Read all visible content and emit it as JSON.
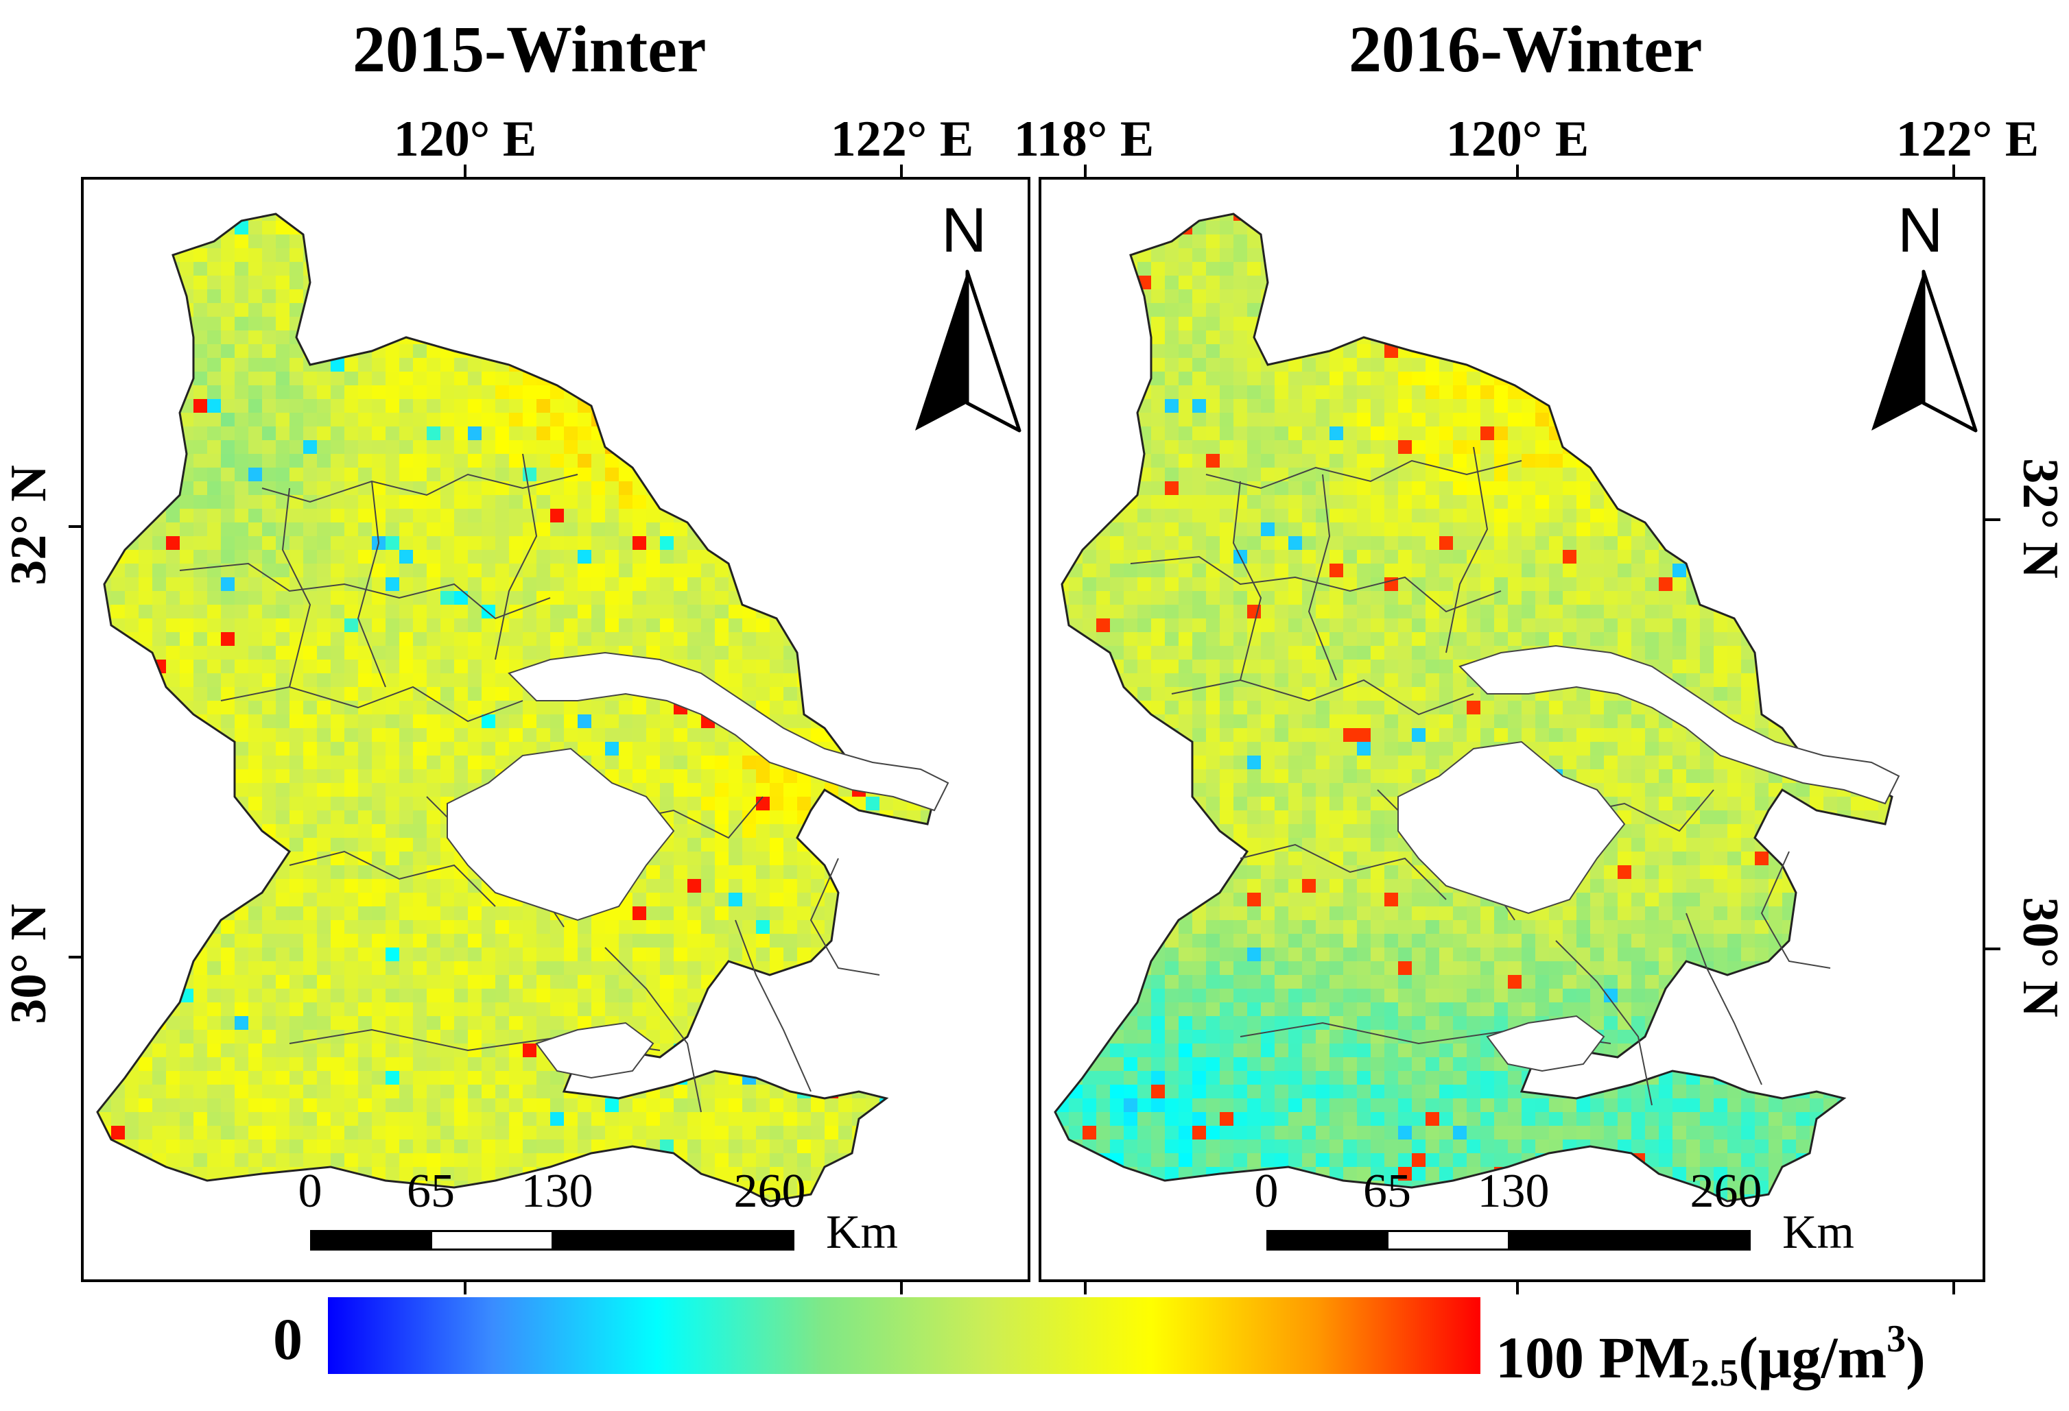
{
  "figure": {
    "panels": [
      {
        "title": "2015-Winter",
        "lon_labels": [
          "120° E",
          "122° E"
        ],
        "lat_labels": [
          "32° N",
          "30° N"
        ]
      },
      {
        "title": "2016-Winter",
        "lon_labels": [
          "118° E",
          "120° E",
          "122° E"
        ],
        "lat_labels": [
          "32° N",
          "30° N"
        ]
      }
    ],
    "north_arrow": "N",
    "scale_bar": {
      "ticks": [
        "0",
        "65",
        "130",
        "260"
      ],
      "unit": "Km"
    }
  },
  "colorbar": {
    "min_label": "0",
    "max_label": "100",
    "quantity": "PM",
    "subscript": "2.5",
    "unit_open": "(μg/m",
    "superscript": "3",
    "unit_close": ")",
    "stops": [
      "#0000ff",
      "#3a8cff",
      "#00ffff",
      "#7fe887",
      "#ccee55",
      "#ffff00",
      "#ff9900",
      "#ff0000"
    ]
  },
  "chart_data": {
    "type": "heatmap",
    "title": [
      "2015-Winter",
      "2016-Winter"
    ],
    "variable": "PM2.5 (μg/m3)",
    "color_range": [
      0,
      100
    ],
    "lon_ticks": [
      118,
      120,
      122
    ],
    "lat_ticks": [
      30,
      32
    ],
    "panels": [
      {
        "name": "2015-Winter",
        "dominant_range": [
          45,
          80
        ],
        "north_bank_range": [
          75,
          90
        ]
      },
      {
        "name": "2016-Winter",
        "dominant_range": [
          35,
          70
        ],
        "south_range": [
          30,
          45
        ]
      }
    ]
  }
}
